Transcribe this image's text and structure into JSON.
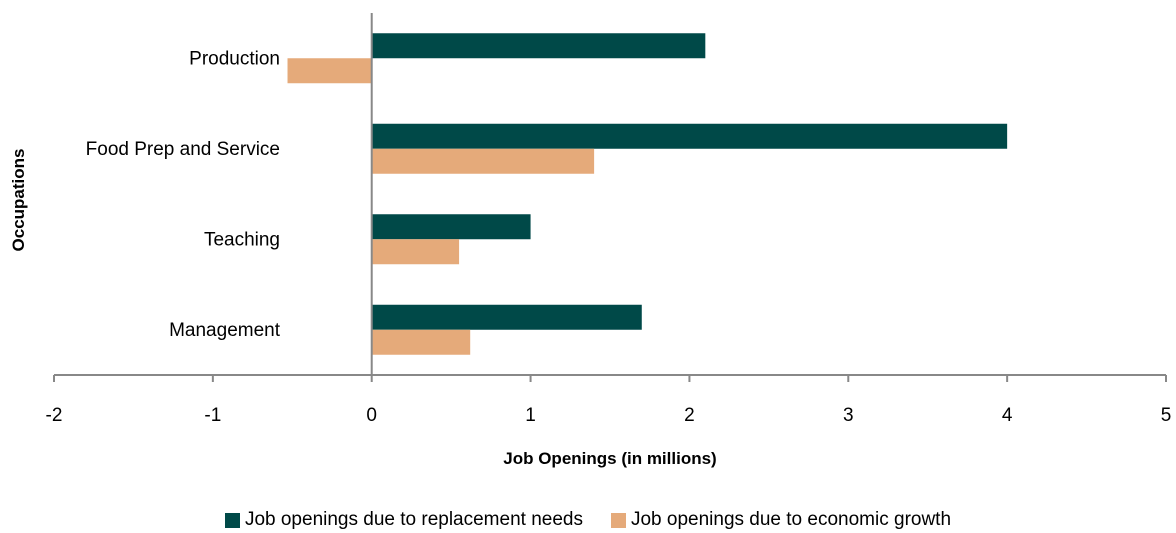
{
  "chart_data": {
    "type": "bar",
    "orientation": "horizontal",
    "categories": [
      "Production",
      "Food Prep and Service",
      "Teaching",
      "Management"
    ],
    "series": [
      {
        "name": "Job openings due to replacement needs",
        "color": "#004948",
        "values": [
          2.1,
          4.0,
          1.0,
          1.7
        ]
      },
      {
        "name": "Job openings due to economic growth",
        "color": "#e5aa7a",
        "values": [
          -0.53,
          1.4,
          0.55,
          0.62
        ]
      }
    ],
    "xlabel": "Job Openings (in millions)",
    "ylabel": "Occupations",
    "xlim": [
      -2,
      5
    ],
    "xticks": [
      "-2",
      "-1",
      "0",
      "1",
      "2",
      "3",
      "4",
      "5"
    ],
    "grid": false,
    "legend_position": "bottom"
  }
}
